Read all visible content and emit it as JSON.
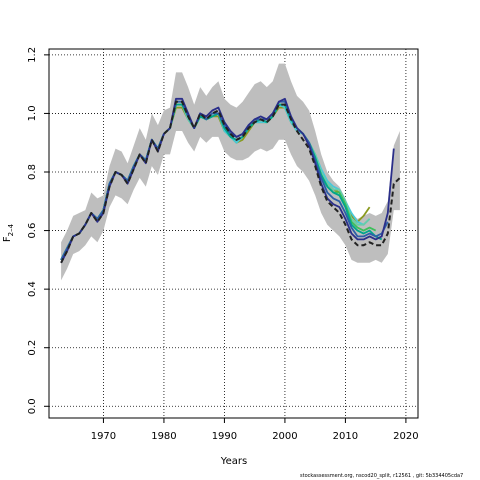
{
  "chart_data": {
    "type": "line",
    "xlabel": "Years",
    "ylabel_main": "F",
    "ylabel_sub": "2–4",
    "xlim": [
      1961,
      2022
    ],
    "ylim": [
      -0.04,
      1.22
    ],
    "x_ticks": [
      1970,
      1980,
      1990,
      2000,
      2010,
      2020
    ],
    "y_ticks": [
      0.0,
      0.2,
      0.4,
      0.6,
      0.8,
      1.0,
      1.2
    ],
    "x_tick_labels": [
      "1970",
      "1980",
      "1990",
      "2000",
      "2010",
      "2020"
    ],
    "y_tick_labels": [
      "0.0",
      "0.2",
      "0.4",
      "0.6",
      "0.8",
      "1.0",
      "1.2"
    ],
    "grid": true,
    "colors": {
      "band": "#bebebe",
      "main": "#222222",
      "retro": [
        "#2b2f8a",
        "#2d5fa8",
        "#00a58c",
        "#3cbf5a",
        "#66cdaa",
        "#48c9d8",
        "#8a9a1f"
      ]
    },
    "band": {
      "x": [
        1963,
        1964,
        1965,
        1966,
        1967,
        1968,
        1969,
        1970,
        1971,
        1972,
        1973,
        1974,
        1975,
        1976,
        1977,
        1978,
        1979,
        1980,
        1981,
        1982,
        1983,
        1984,
        1985,
        1986,
        1987,
        1988,
        1989,
        1990,
        1991,
        1992,
        1993,
        1994,
        1995,
        1996,
        1997,
        1998,
        1999,
        2000,
        2001,
        2002,
        2003,
        2004,
        2005,
        2006,
        2007,
        2008,
        2009,
        2010,
        2011,
        2012,
        2013,
        2014,
        2015,
        2016,
        2017,
        2018,
        2019
      ],
      "lower": [
        0.43,
        0.47,
        0.52,
        0.53,
        0.55,
        0.58,
        0.56,
        0.6,
        0.68,
        0.72,
        0.71,
        0.69,
        0.74,
        0.78,
        0.75,
        0.82,
        0.79,
        0.86,
        0.86,
        0.94,
        0.94,
        0.9,
        0.87,
        0.92,
        0.9,
        0.92,
        0.92,
        0.87,
        0.85,
        0.84,
        0.84,
        0.85,
        0.87,
        0.88,
        0.87,
        0.88,
        0.91,
        0.91,
        0.86,
        0.82,
        0.8,
        0.77,
        0.72,
        0.66,
        0.62,
        0.6,
        0.58,
        0.55,
        0.5,
        0.49,
        0.49,
        0.49,
        0.5,
        0.49,
        0.52,
        0.67,
        0.67
      ],
      "upper": [
        0.56,
        0.6,
        0.65,
        0.66,
        0.67,
        0.73,
        0.71,
        0.72,
        0.82,
        0.88,
        0.87,
        0.83,
        0.89,
        0.95,
        0.91,
        1.0,
        0.96,
        1.01,
        1.02,
        1.14,
        1.14,
        1.09,
        1.03,
        1.09,
        1.06,
        1.09,
        1.11,
        1.05,
        1.03,
        1.02,
        1.04,
        1.07,
        1.1,
        1.11,
        1.09,
        1.11,
        1.17,
        1.17,
        1.11,
        1.06,
        1.04,
        1.01,
        0.94,
        0.86,
        0.8,
        0.77,
        0.75,
        0.71,
        0.66,
        0.64,
        0.65,
        0.66,
        0.65,
        0.66,
        0.7,
        0.89,
        0.94
      ]
    },
    "series": [
      {
        "x": [
          1963,
          1964,
          1965,
          1966,
          1967,
          1968,
          1969,
          1970,
          1971,
          1972,
          1973,
          1974,
          1975,
          1976,
          1977,
          1978,
          1979,
          1980,
          1981,
          1982,
          1983,
          1984,
          1985,
          1986,
          1987,
          1988,
          1989,
          1990,
          1991,
          1992,
          1993,
          1994,
          1995,
          1996,
          1997,
          1998,
          1999,
          2000,
          2001,
          2002,
          2003,
          2004,
          2005,
          2006,
          2007,
          2008,
          2009,
          2010,
          2011,
          2012,
          2013,
          2014,
          2015,
          2016,
          2017,
          2018,
          2019
        ],
        "values": [
          0.49,
          0.53,
          0.58,
          0.59,
          0.62,
          0.66,
          0.63,
          0.66,
          0.75,
          0.8,
          0.79,
          0.76,
          0.81,
          0.86,
          0.83,
          0.91,
          0.87,
          0.93,
          0.95,
          1.04,
          1.04,
          0.99,
          0.95,
          1.0,
          0.98,
          1.0,
          1.01,
          0.96,
          0.93,
          0.91,
          0.92,
          0.95,
          0.97,
          0.98,
          0.97,
          0.99,
          1.03,
          1.03,
          0.98,
          0.94,
          0.91,
          0.88,
          0.82,
          0.75,
          0.7,
          0.68,
          0.66,
          0.62,
          0.57,
          0.55,
          0.55,
          0.56,
          0.55,
          0.55,
          0.59,
          0.76,
          0.78
        ]
      },
      {
        "x": [
          1963,
          1964,
          1965,
          1966,
          1967,
          1968,
          1969,
          1970,
          1971,
          1972,
          1973,
          1974,
          1975,
          1976,
          1977,
          1978,
          1979,
          1980,
          1981,
          1982,
          1983,
          1984,
          1985,
          1986,
          1987,
          1988,
          1989,
          1990,
          1991,
          1992,
          1993,
          1994,
          1995,
          1996,
          1997,
          1998,
          1999,
          2000,
          2001,
          2002,
          2003,
          2004,
          2005,
          2006,
          2007,
          2008,
          2009,
          2010,
          2011,
          2012,
          2013,
          2014,
          2015,
          2016,
          2017,
          2018
        ],
        "values": [
          0.49,
          0.53,
          0.58,
          0.59,
          0.62,
          0.66,
          0.63,
          0.66,
          0.75,
          0.8,
          0.79,
          0.76,
          0.81,
          0.86,
          0.83,
          0.91,
          0.87,
          0.93,
          0.95,
          1.05,
          1.05,
          1.0,
          0.95,
          1.0,
          0.99,
          1.01,
          1.02,
          0.97,
          0.94,
          0.92,
          0.93,
          0.96,
          0.98,
          0.99,
          0.98,
          1.0,
          1.04,
          1.05,
          0.99,
          0.95,
          0.93,
          0.89,
          0.83,
          0.76,
          0.71,
          0.69,
          0.68,
          0.64,
          0.59,
          0.57,
          0.57,
          0.58,
          0.57,
          0.58,
          0.66,
          0.88
        ]
      },
      {
        "x": [
          1963,
          1964,
          1965,
          1966,
          1967,
          1968,
          1969,
          1970,
          1971,
          1972,
          1973,
          1974,
          1975,
          1976,
          1977,
          1978,
          1979,
          1980,
          1981,
          1982,
          1983,
          1984,
          1985,
          1986,
          1987,
          1988,
          1989,
          1990,
          1991,
          1992,
          1993,
          1994,
          1995,
          1996,
          1997,
          1998,
          1999,
          2000,
          2001,
          2002,
          2003,
          2004,
          2005,
          2006,
          2007,
          2008,
          2009,
          2010,
          2011,
          2012,
          2013,
          2014,
          2015,
          2016,
          2017
        ],
        "values": [
          0.5,
          0.54,
          0.58,
          0.59,
          0.62,
          0.66,
          0.64,
          0.67,
          0.76,
          0.8,
          0.79,
          0.77,
          0.82,
          0.86,
          0.84,
          0.91,
          0.88,
          0.93,
          0.95,
          1.04,
          1.04,
          0.99,
          0.95,
          1.0,
          0.98,
          1.0,
          1.0,
          0.96,
          0.93,
          0.92,
          0.93,
          0.96,
          0.98,
          0.98,
          0.98,
          1.0,
          1.04,
          1.04,
          0.99,
          0.95,
          0.93,
          0.9,
          0.84,
          0.78,
          0.73,
          0.71,
          0.7,
          0.66,
          0.61,
          0.58,
          0.58,
          0.59,
          0.58,
          0.59,
          0.63
        ]
      },
      {
        "x": [
          1963,
          1964,
          1965,
          1966,
          1967,
          1968,
          1969,
          1970,
          1971,
          1972,
          1973,
          1974,
          1975,
          1976,
          1977,
          1978,
          1979,
          1980,
          1981,
          1982,
          1983,
          1984,
          1985,
          1986,
          1987,
          1988,
          1989,
          1990,
          1991,
          1992,
          1993,
          1994,
          1995,
          1996,
          1997,
          1998,
          1999,
          2000,
          2001,
          2002,
          2003,
          2004,
          2005,
          2006,
          2007,
          2008,
          2009,
          2010,
          2011,
          2012,
          2013,
          2014,
          2015,
          2016
        ],
        "values": [
          0.5,
          0.54,
          0.58,
          0.59,
          0.62,
          0.66,
          0.64,
          0.67,
          0.76,
          0.8,
          0.79,
          0.77,
          0.82,
          0.86,
          0.84,
          0.91,
          0.88,
          0.93,
          0.95,
          1.03,
          1.03,
          0.99,
          0.95,
          0.99,
          0.98,
          0.99,
          1.0,
          0.95,
          0.92,
          0.91,
          0.92,
          0.95,
          0.97,
          0.98,
          0.97,
          0.99,
          1.03,
          1.03,
          0.98,
          0.95,
          0.93,
          0.9,
          0.85,
          0.79,
          0.75,
          0.73,
          0.72,
          0.68,
          0.62,
          0.6,
          0.59,
          0.6,
          0.58,
          0.57
        ]
      },
      {
        "x": [
          1963,
          1964,
          1965,
          1966,
          1967,
          1968,
          1969,
          1970,
          1971,
          1972,
          1973,
          1974,
          1975,
          1976,
          1977,
          1978,
          1979,
          1980,
          1981,
          1982,
          1983,
          1984,
          1985,
          1986,
          1987,
          1988,
          1989,
          1990,
          1991,
          1992,
          1993,
          1994,
          1995,
          1996,
          1997,
          1998,
          1999,
          2000,
          2001,
          2002,
          2003,
          2004,
          2005,
          2006,
          2007,
          2008,
          2009,
          2010,
          2011,
          2012,
          2013,
          2014,
          2015
        ],
        "values": [
          0.5,
          0.54,
          0.58,
          0.59,
          0.62,
          0.66,
          0.64,
          0.67,
          0.76,
          0.8,
          0.79,
          0.77,
          0.82,
          0.86,
          0.84,
          0.91,
          0.88,
          0.93,
          0.95,
          1.03,
          1.03,
          0.99,
          0.95,
          0.99,
          0.98,
          0.99,
          1.0,
          0.95,
          0.93,
          0.92,
          0.93,
          0.95,
          0.97,
          0.98,
          0.97,
          0.99,
          1.03,
          1.03,
          0.98,
          0.95,
          0.93,
          0.9,
          0.85,
          0.79,
          0.75,
          0.73,
          0.73,
          0.69,
          0.63,
          0.61,
          0.6,
          0.61,
          0.6
        ]
      },
      {
        "x": [
          1963,
          1964,
          1965,
          1966,
          1967,
          1968,
          1969,
          1970,
          1971,
          1972,
          1973,
          1974,
          1975,
          1976,
          1977,
          1978,
          1979,
          1980,
          1981,
          1982,
          1983,
          1984,
          1985,
          1986,
          1987,
          1988,
          1989,
          1990,
          1991,
          1992,
          1993,
          1994,
          1995,
          1996,
          1997,
          1998,
          1999,
          2000,
          2001,
          2002,
          2003,
          2004,
          2005,
          2006,
          2007,
          2008,
          2009,
          2010,
          2011,
          2012,
          2013,
          2014
        ],
        "values": [
          0.5,
          0.54,
          0.58,
          0.59,
          0.62,
          0.66,
          0.64,
          0.67,
          0.76,
          0.8,
          0.79,
          0.77,
          0.82,
          0.86,
          0.84,
          0.91,
          0.88,
          0.93,
          0.95,
          1.03,
          1.03,
          0.98,
          0.95,
          0.99,
          0.98,
          0.99,
          1.0,
          0.95,
          0.93,
          0.92,
          0.93,
          0.95,
          0.97,
          0.98,
          0.97,
          0.99,
          1.03,
          1.03,
          0.98,
          0.95,
          0.93,
          0.9,
          0.86,
          0.8,
          0.76,
          0.74,
          0.74,
          0.7,
          0.64,
          0.62,
          0.62,
          0.64
        ]
      },
      {
        "x": [
          1963,
          1964,
          1965,
          1966,
          1967,
          1968,
          1969,
          1970,
          1971,
          1972,
          1973,
          1974,
          1975,
          1976,
          1977,
          1978,
          1979,
          1980,
          1981,
          1982,
          1983,
          1984,
          1985,
          1986,
          1987,
          1988,
          1989,
          1990,
          1991,
          1992,
          1993,
          1994,
          1995,
          1996,
          1997,
          1998,
          1999,
          2000,
          2001,
          2002,
          2003,
          2004,
          2005,
          2006,
          2007,
          2008,
          2009,
          2010,
          2011,
          2012,
          2013,
          2014
        ],
        "values": [
          0.5,
          0.54,
          0.58,
          0.59,
          0.62,
          0.66,
          0.64,
          0.67,
          0.76,
          0.8,
          0.79,
          0.77,
          0.82,
          0.86,
          0.84,
          0.91,
          0.88,
          0.93,
          0.95,
          1.03,
          1.03,
          0.98,
          0.95,
          0.99,
          0.98,
          0.99,
          1.0,
          0.94,
          0.92,
          0.9,
          0.92,
          0.95,
          0.97,
          0.97,
          0.97,
          0.99,
          1.03,
          1.02,
          0.97,
          0.94,
          0.93,
          0.9,
          0.86,
          0.81,
          0.77,
          0.75,
          0.74,
          0.7,
          0.66,
          0.63,
          0.62,
          0.64
        ]
      },
      {
        "x": [
          1963,
          1964,
          1965,
          1966,
          1967,
          1968,
          1969,
          1970,
          1971,
          1972,
          1973,
          1974,
          1975,
          1976,
          1977,
          1978,
          1979,
          1980,
          1981,
          1982,
          1983,
          1984,
          1985,
          1986,
          1987,
          1988,
          1989,
          1990,
          1991,
          1992,
          1993,
          1994,
          1995,
          1996,
          1997,
          1998,
          1999,
          2000,
          2001,
          2002,
          2003,
          2004,
          2005,
          2006,
          2007,
          2008,
          2009,
          2010,
          2011,
          2012,
          2013,
          2014
        ],
        "values": [
          0.5,
          0.54,
          0.58,
          0.59,
          0.62,
          0.66,
          0.64,
          0.67,
          0.76,
          0.8,
          0.79,
          0.77,
          0.82,
          0.86,
          0.84,
          0.91,
          0.88,
          0.93,
          0.95,
          1.02,
          1.02,
          0.98,
          0.95,
          0.99,
          0.98,
          0.99,
          0.99,
          0.94,
          0.92,
          0.9,
          0.91,
          0.94,
          0.97,
          0.97,
          0.97,
          0.99,
          1.02,
          1.02,
          0.97,
          0.94,
          0.93,
          0.9,
          0.86,
          0.8,
          0.76,
          0.74,
          0.73,
          0.69,
          0.65,
          0.63,
          0.65,
          0.68
        ]
      }
    ]
  },
  "footer_text": "stockassessment.org, nscod20_split, r12561 , git: 5b334405cda7"
}
